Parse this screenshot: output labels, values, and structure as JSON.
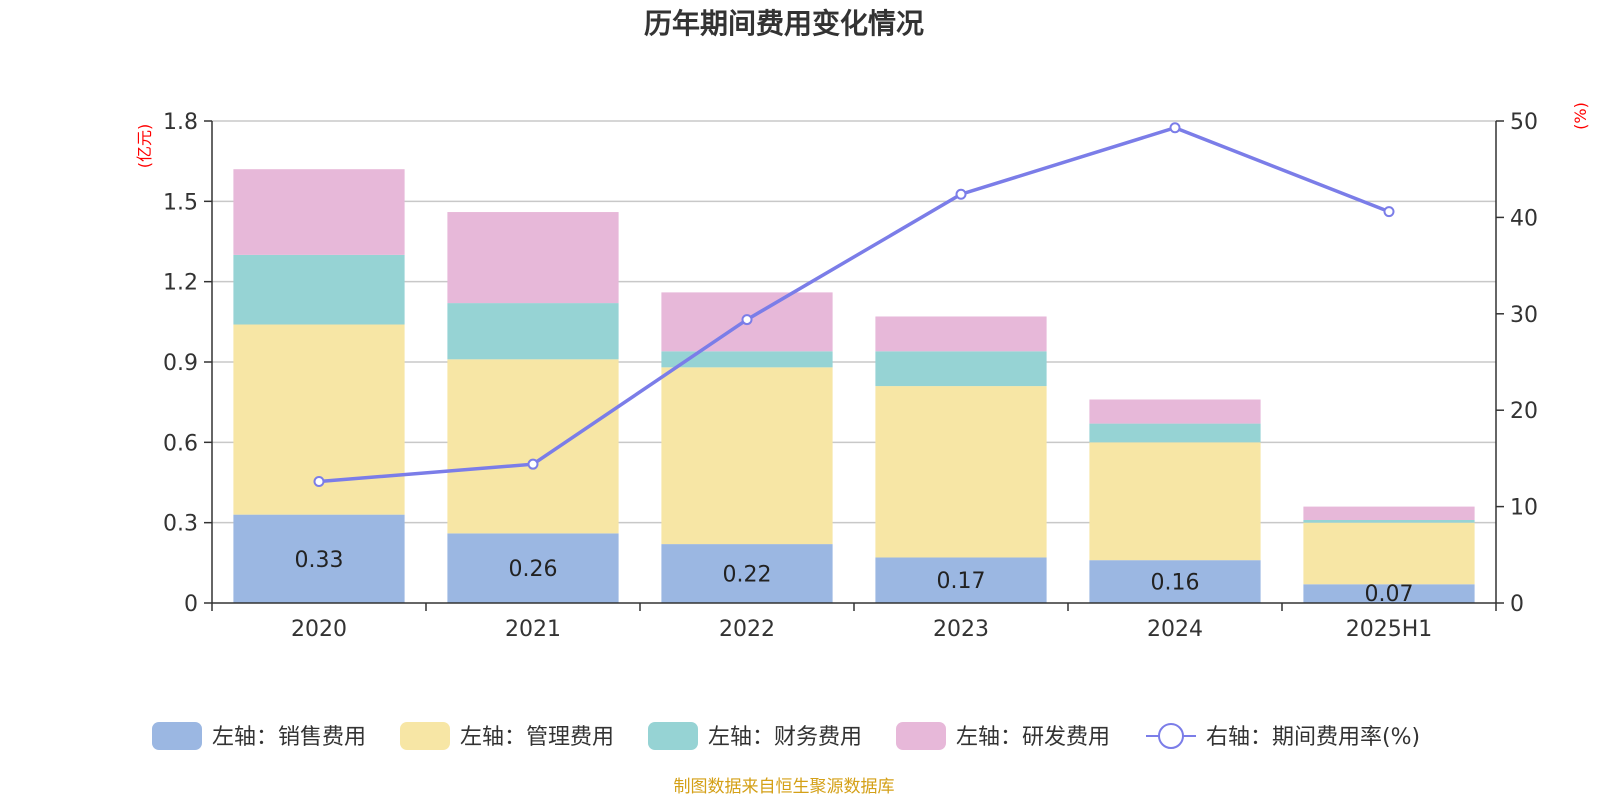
{
  "title": "历年期间费用变化情况",
  "source": "制图数据来自恒生聚源数据库",
  "colors": {
    "sales": "#9bb7e2",
    "management": "#f7e6a5",
    "finance": "#96d3d4",
    "rnd": "#e7b8d9",
    "rate": "#7b7de8",
    "grid": "#c8c8c8",
    "axis": "#333333",
    "unit": "#ff0000",
    "source": "#d4a017"
  },
  "chart_data": {
    "type": "bar",
    "title": "历年期间费用变化情况",
    "categories": [
      "2020",
      "2021",
      "2022",
      "2023",
      "2024",
      "2025H1"
    ],
    "y_left": {
      "unit": "(亿元)",
      "ylim": [
        0,
        1.8
      ],
      "ticks": [
        "0",
        "0.3",
        "0.6",
        "0.9",
        "1.2",
        "1.5",
        "1.8"
      ]
    },
    "y_right": {
      "unit": "(%)",
      "ylim": [
        0,
        50
      ],
      "ticks": [
        "0",
        "10",
        "20",
        "30",
        "40",
        "50"
      ]
    },
    "grid": true,
    "legend_position": "bottom",
    "series": [
      {
        "key": "sales",
        "name": "左轴：销售费用",
        "axis": "left",
        "stack": true,
        "values": [
          0.33,
          0.26,
          0.22,
          0.17,
          0.16,
          0.07
        ],
        "labels": [
          "0.33",
          "0.26",
          "0.22",
          "0.17",
          "0.16",
          "0.07"
        ]
      },
      {
        "key": "management",
        "name": "左轴：管理费用",
        "axis": "left",
        "stack": true,
        "values": [
          0.71,
          0.65,
          0.66,
          0.64,
          0.44,
          0.23
        ]
      },
      {
        "key": "finance",
        "name": "左轴：财务费用",
        "axis": "left",
        "stack": true,
        "values": [
          0.26,
          0.21,
          0.06,
          0.13,
          0.07,
          0.01
        ]
      },
      {
        "key": "rnd",
        "name": "左轴：研发费用",
        "axis": "left",
        "stack": true,
        "values": [
          0.32,
          0.34,
          0.22,
          0.13,
          0.09,
          0.05
        ]
      },
      {
        "key": "rate",
        "name": "右轴：期间费用率(%)",
        "axis": "right",
        "type": "line",
        "values": [
          12.6,
          14.4,
          29.4,
          42.4,
          49.3,
          40.6
        ]
      }
    ]
  }
}
